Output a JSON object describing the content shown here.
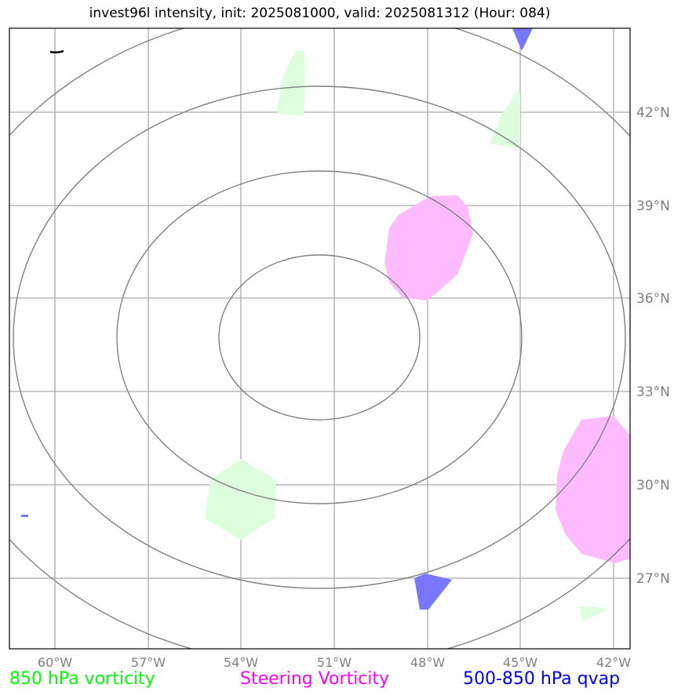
{
  "title": "invest96l intensity, init: 2025081000, valid: 2025081312 (Hour: 084)",
  "map": {
    "lon_ticks": [
      "60°W",
      "57°W",
      "54°W",
      "51°W",
      "48°W",
      "45°W",
      "42°W"
    ],
    "lat_ticks": [
      "42°N",
      "39°N",
      "36°N",
      "33°N",
      "30°N",
      "27°N"
    ],
    "gridline_color": "#aaaaaa",
    "contour_color": "#808080"
  },
  "legend": {
    "vorticity_850": {
      "label": "850 hPa vorticity",
      "color": "#00ff00"
    },
    "steering_vorticity": {
      "label": "Steering Vorticity",
      "color": "#ff00ff"
    },
    "qvap_500_850": {
      "label": "500-850 hPa qvap",
      "color": "#0000ff"
    }
  },
  "layers": {
    "vorticity_850_fill": "#ddffdd",
    "steering_vorticity_fill": "#ffbbff",
    "qvap_fill": "#7777ff"
  }
}
